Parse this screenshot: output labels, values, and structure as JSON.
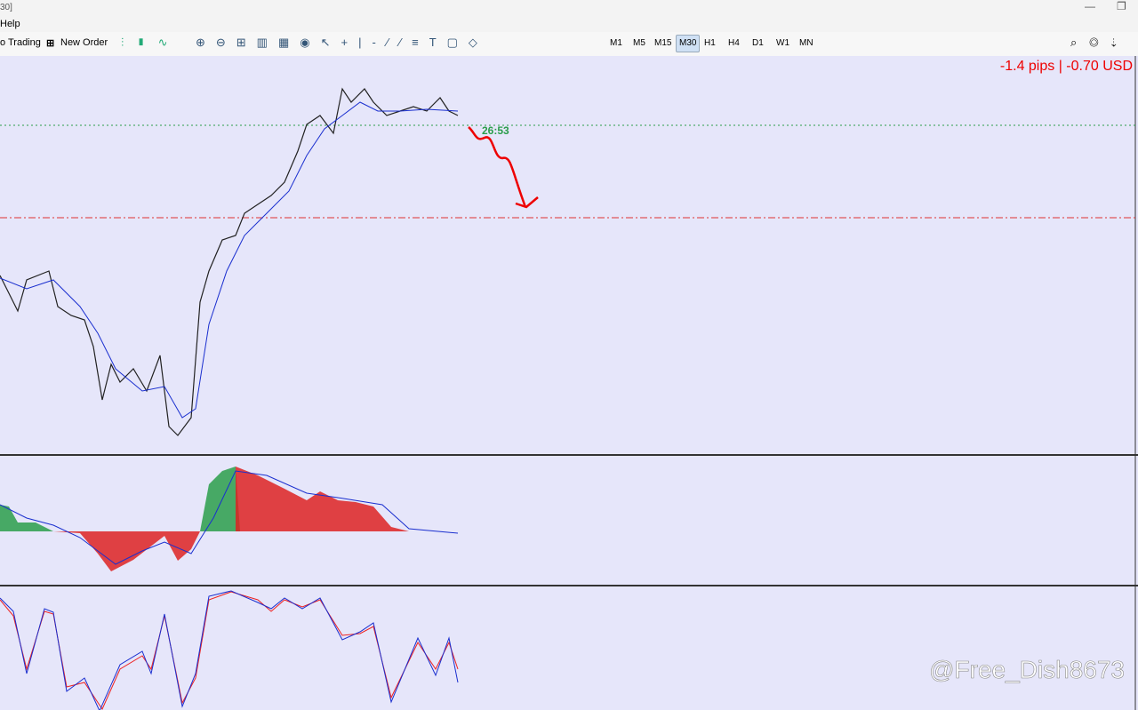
{
  "window": {
    "title": "30]"
  },
  "menu": [
    "Help"
  ],
  "toolbar": {
    "buttons": [
      "o Trading",
      "New Order"
    ],
    "timeframes": [
      "M1",
      "M5",
      "M15",
      "M30",
      "H1",
      "H4",
      "D1",
      "W1",
      "MN"
    ],
    "active_timeframe": "M30"
  },
  "chart": {
    "profit": "-1.4 pips | -0.70 USD",
    "timer": "26:53"
  },
  "watermark": "@Free_Dish8673"
}
